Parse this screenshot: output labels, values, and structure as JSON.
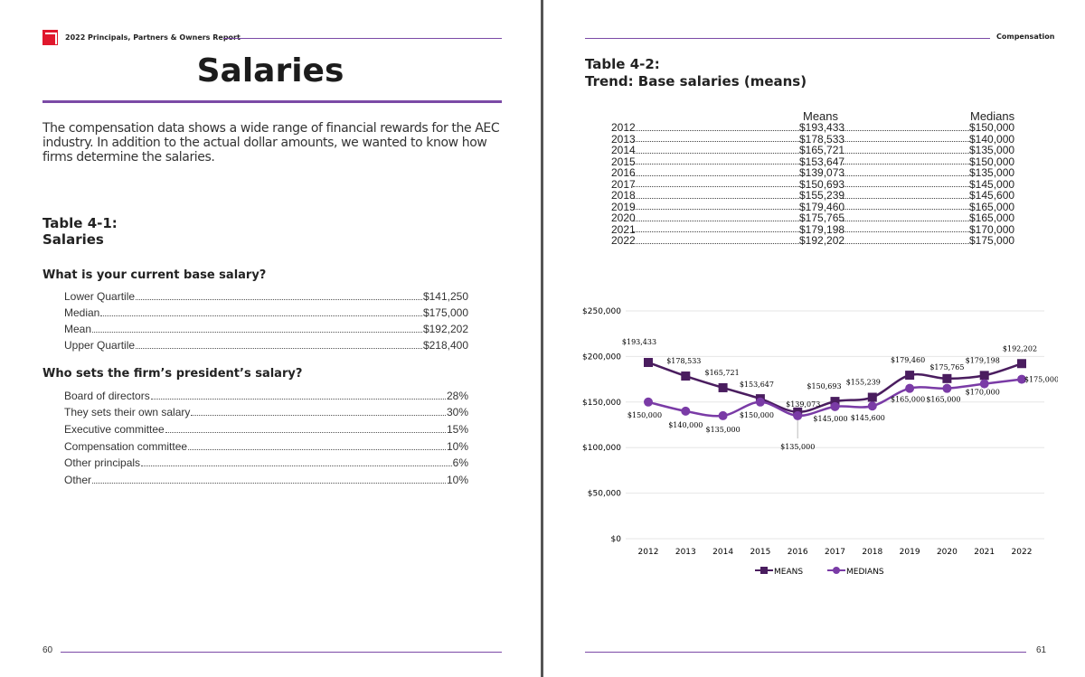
{
  "left_page": {
    "running_head": "2022 Principals, Partners & Owners Report",
    "title": "Salaries",
    "intro": "The compensation data shows a wide range of financial rewards for the AEC industry. In addition to the actual dollar amounts, we wanted to know how firms determine the salaries.",
    "table_label": "Table 4-1:",
    "table_title": "Salaries",
    "q1": "What is your current base salary?",
    "q1_rows": [
      {
        "label": "Lower Quartile",
        "value": "$141,250"
      },
      {
        "label": "Median",
        "value": "$175,000"
      },
      {
        "label": "Mean",
        "value": "$192,202"
      },
      {
        "label": "Upper Quartile",
        "value": "$218,400"
      }
    ],
    "q2": "Who sets the firm’s president’s salary?",
    "q2_rows": [
      {
        "label": "Board of directors",
        "value": "28%"
      },
      {
        "label": "They sets their own salary",
        "value": "30%"
      },
      {
        "label": "Executive committee",
        "value": "15%"
      },
      {
        "label": "Compensation committee",
        "value": "10%"
      },
      {
        "label": "Other principals",
        "value": "6%"
      },
      {
        "label": "Other",
        "value": "10%"
      }
    ],
    "page_number": "60"
  },
  "right_page": {
    "running_head": "Compensation",
    "table_label": "Table 4-2:",
    "table_title": "Trend: Base salaries (means)",
    "col_means": "Means",
    "col_medians": "Medians",
    "rows": [
      {
        "year": "2012",
        "mean": "$193,433",
        "median": "$150,000"
      },
      {
        "year": "2013",
        "mean": "$178,533",
        "median": "$140,000"
      },
      {
        "year": "2014",
        "mean": "$165,721",
        "median": "$135,000"
      },
      {
        "year": "2015",
        "mean": "$153,647",
        "median": "$150,000"
      },
      {
        "year": "2016",
        "mean": "$139,073",
        "median": "$135,000"
      },
      {
        "year": "2017",
        "mean": "$150,693",
        "median": "$145,000"
      },
      {
        "year": "2018",
        "mean": "$155,239",
        "median": "$145,600"
      },
      {
        "year": "2019",
        "mean": "$179,460",
        "median": "$165,000"
      },
      {
        "year": "2020",
        "mean": "$175,765",
        "median": "$165,000"
      },
      {
        "year": "2021",
        "mean": "$179,198",
        "median": "$170,000"
      },
      {
        "year": "2022",
        "mean": "$192,202",
        "median": "$175,000"
      }
    ],
    "page_number": "61"
  },
  "colors": {
    "accent": "#7b4aa6",
    "means": "#4a1d5f",
    "medians": "#7a3ba6",
    "logo": "#e0182d"
  },
  "chart_data": {
    "type": "line",
    "categories": [
      "2012",
      "2013",
      "2014",
      "2015",
      "2016",
      "2017",
      "2018",
      "2019",
      "2020",
      "2021",
      "2022"
    ],
    "series": [
      {
        "name": "MEANS",
        "marker": "square",
        "values": [
          193433,
          178533,
          165721,
          153647,
          139073,
          150693,
          155239,
          179460,
          175765,
          179198,
          192202
        ],
        "labels": [
          "$193,433",
          "$178,533",
          "$165,721",
          "$153,647",
          "$139,073",
          "$150,693",
          "$155,239",
          "$179,460",
          "$175,765",
          "$179,198",
          "$192,202"
        ]
      },
      {
        "name": "MEDIANS",
        "marker": "circle",
        "values": [
          150000,
          140000,
          135000,
          150000,
          135000,
          145000,
          145600,
          165000,
          165000,
          170000,
          175000
        ],
        "labels": [
          "$150,000",
          "$140,000",
          "$135,000",
          "$150,000",
          "$135,000",
          "$145,000",
          "$145,600",
          "$165,000",
          "$165,000",
          "$170,000",
          "$175,000"
        ]
      }
    ],
    "yticks": [
      "$0",
      "$50,000",
      "$100,000",
      "$150,000",
      "$200,000",
      "$250,000"
    ],
    "ylim": [
      0,
      250000
    ],
    "grid": true,
    "legend": "bottom"
  }
}
